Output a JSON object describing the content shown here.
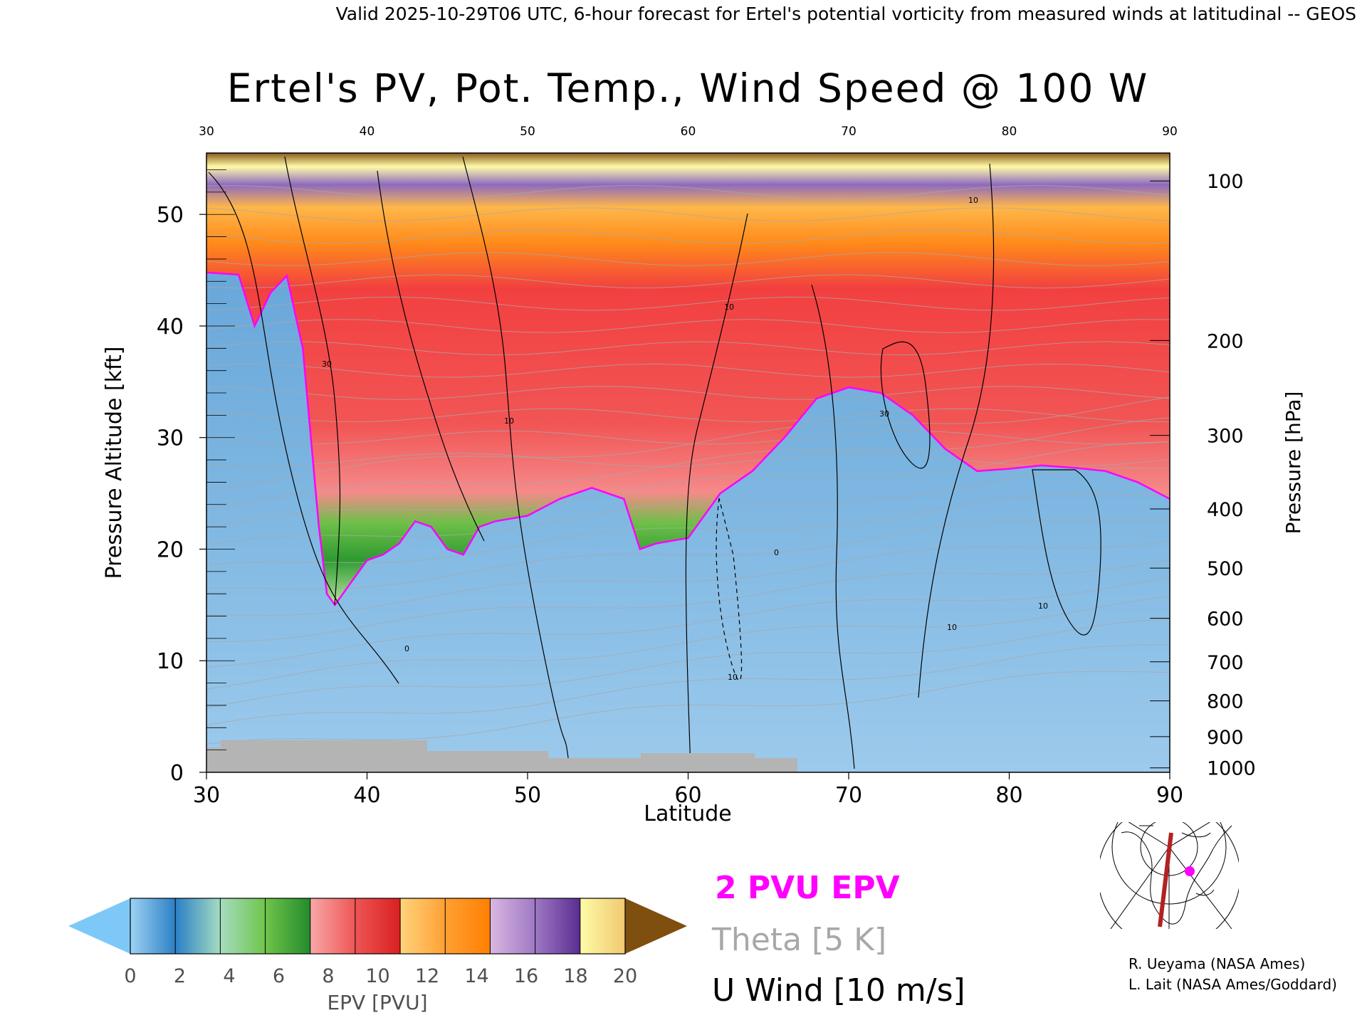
{
  "header": {
    "valid_line": "Valid 2025-10-29T06 UTC, 6-hour forecast for Ertel's potential vorticity from measured winds at latitudinal -- GEOS"
  },
  "colors": {
    "pv_line": "#ff00ff",
    "theta_line": "#a8a8a8",
    "wind_line": "#000000",
    "terrain": "#b4b4b4",
    "track": "#b22222"
  },
  "chart_data": {
    "type": "heatmap",
    "title": "Ertel's PV, Pot. Temp., Wind Speed @ 100 W",
    "xlabel": "Latitude",
    "ylabel": "Pressure Altitude [kft]",
    "y2label": "Pressure [hPa]",
    "xlim": [
      30,
      90
    ],
    "ylim": [
      0,
      55.5
    ],
    "x_ticks": [
      "30",
      "40",
      "50",
      "60",
      "70",
      "80",
      "90"
    ],
    "top_ticks": [
      "30",
      "40",
      "50",
      "60",
      "70",
      "80",
      "90"
    ],
    "y_ticks": [
      "0",
      "10",
      "20",
      "30",
      "40",
      "50"
    ],
    "pressure_ticks": [
      {
        "label": "100",
        "alt": 53.0
      },
      {
        "label": "200",
        "alt": 38.7
      },
      {
        "label": "300",
        "alt": 30.2
      },
      {
        "label": "400",
        "alt": 23.6
      },
      {
        "label": "500",
        "alt": 18.3
      },
      {
        "label": "600",
        "alt": 13.8
      },
      {
        "label": "700",
        "alt": 9.9
      },
      {
        "label": "800",
        "alt": 6.4
      },
      {
        "label": "900",
        "alt": 3.2
      },
      {
        "label": "1000",
        "alt": 0.4
      }
    ],
    "pv2_tropopause": [
      [
        30,
        44.8
      ],
      [
        32,
        44.6
      ],
      [
        33,
        40
      ],
      [
        34,
        43
      ],
      [
        35,
        44.5
      ],
      [
        36,
        38
      ],
      [
        37,
        22
      ],
      [
        37.5,
        16
      ],
      [
        38,
        15
      ],
      [
        39,
        17
      ],
      [
        40,
        19
      ],
      [
        41,
        19.5
      ],
      [
        42,
        20.5
      ],
      [
        43,
        22.5
      ],
      [
        44,
        22
      ],
      [
        45,
        20
      ],
      [
        46,
        19.5
      ],
      [
        47,
        22
      ],
      [
        48,
        22.5
      ],
      [
        50,
        23
      ],
      [
        52,
        24.5
      ],
      [
        54,
        25.5
      ],
      [
        56,
        24.5
      ],
      [
        57,
        20
      ],
      [
        58,
        20.5
      ],
      [
        60,
        21
      ],
      [
        62,
        25
      ],
      [
        64,
        27
      ],
      [
        66,
        30
      ],
      [
        68,
        33.5
      ],
      [
        70,
        34.5
      ],
      [
        72,
        34
      ],
      [
        74,
        32
      ],
      [
        76,
        29
      ],
      [
        78,
        27
      ],
      [
        80,
        27.2
      ],
      [
        82,
        27.5
      ],
      [
        84,
        27.3
      ],
      [
        86,
        27
      ],
      [
        88,
        26
      ],
      [
        90,
        24.5
      ]
    ],
    "u_wind_labels": [
      "30",
      "10",
      "0",
      "10",
      "30",
      "10",
      "0",
      "10",
      "10",
      "10"
    ],
    "colorbar": {
      "label": "EPV [PVU]",
      "ticks": [
        "0",
        "2",
        "4",
        "6",
        "8",
        "10",
        "12",
        "14",
        "16",
        "18",
        "20"
      ],
      "below_color": "#7ec8f8",
      "above_color": "#7f4f0f",
      "segments": [
        [
          "#9ed2f2",
          "#2b7fc6"
        ],
        [
          "#2b7fc6",
          "#a5ddc0"
        ],
        [
          "#a5ddc0",
          "#6fc44a"
        ],
        [
          "#6fc44a",
          "#238b2c"
        ],
        [
          "#f8a8a8",
          "#ee5555"
        ],
        [
          "#ee5555",
          "#d92020"
        ],
        [
          "#ffd37c",
          "#ffa033"
        ],
        [
          "#ffa033",
          "#ff7f00"
        ],
        [
          "#d8b8e0",
          "#9e78c4"
        ],
        [
          "#9e78c4",
          "#5a2d91"
        ],
        [
          "#fffba8",
          "#f0c870"
        ]
      ]
    },
    "legend": {
      "pv": "2 PVU EPV",
      "theta": "Theta [5 K]",
      "wind": "U Wind [10 m/s]"
    }
  },
  "credits": {
    "line1": "R. Ueyama (NASA Ames)",
    "line2": "L. Lait (NASA Ames/Goddard)"
  }
}
